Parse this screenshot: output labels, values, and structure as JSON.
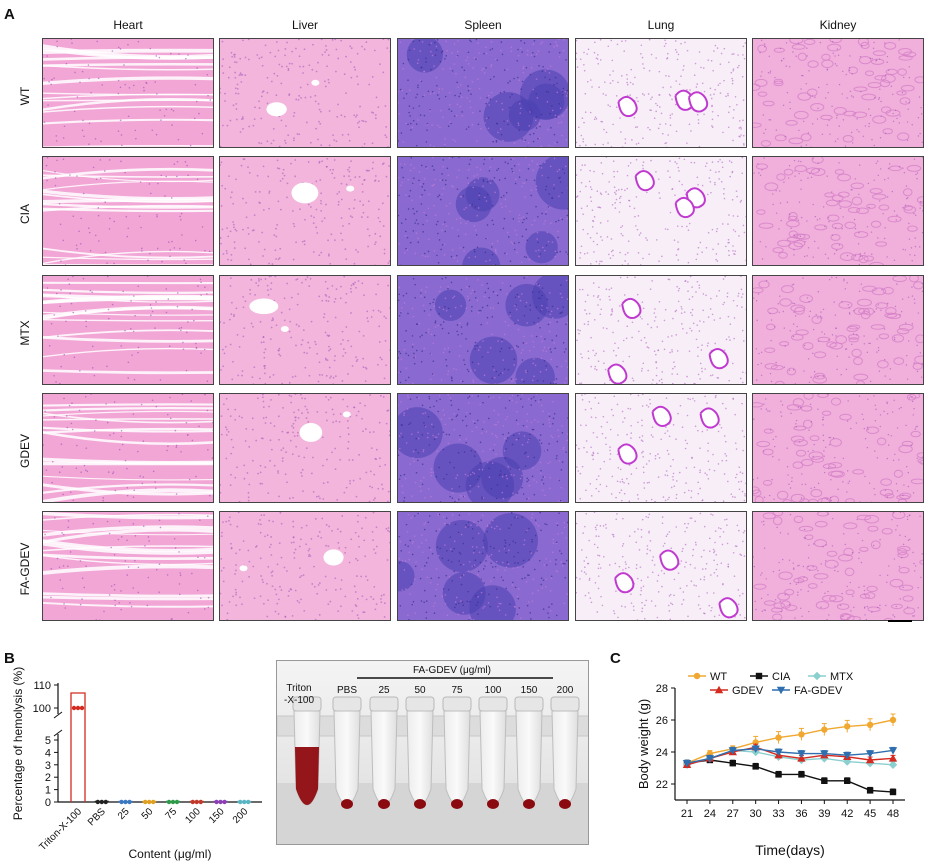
{
  "panel_a": {
    "letter": "A",
    "columns": [
      "Heart",
      "Liver",
      "Spleen",
      "Lung",
      "Kidney"
    ],
    "rows": [
      "WT",
      "CIA",
      "MTX",
      "GDEV",
      "FA-GDEV"
    ]
  },
  "panel_b": {
    "letter": "B",
    "chart_data": {
      "type": "scatter",
      "title": "",
      "ylabel": "Percentage of hemolysis (%)",
      "xlabel": "Content (μg/ml)",
      "categories": [
        "Triton-X-100",
        "PBS",
        "25",
        "50",
        "75",
        "100",
        "150",
        "200"
      ],
      "values": [
        100,
        0,
        0,
        0,
        0,
        0,
        0,
        0
      ],
      "y_ticks_lower": [
        "0",
        "1",
        "2",
        "3",
        "4",
        "5"
      ],
      "y_ticks_upper": [
        "100",
        "110"
      ],
      "axis_break": true,
      "colors": [
        "#d42a20",
        "#222222",
        "#3a78c2",
        "#e0a020",
        "#2f9a4a",
        "#c0392b",
        "#8a3fb5",
        "#5ab5c4"
      ]
    },
    "photo": {
      "group_label": "FA-GDEV (μg/ml)",
      "triton_label_1": "Triton",
      "triton_label_2": "-X-100",
      "labels": [
        "PBS",
        "25",
        "50",
        "75",
        "100",
        "150",
        "200"
      ]
    }
  },
  "panel_c": {
    "letter": "C",
    "chart_data": {
      "type": "line",
      "ylabel": "Body weight (g)",
      "xlabel": "Time(days)",
      "x": [
        21,
        24,
        27,
        30,
        33,
        36,
        39,
        42,
        45,
        48
      ],
      "ylim": [
        21,
        28
      ],
      "y_ticks": [
        22,
        24,
        26,
        28
      ],
      "series": [
        {
          "name": "WT",
          "color": "#f0a830",
          "marker": "circle",
          "values": [
            23.3,
            23.9,
            24.2,
            24.6,
            24.9,
            25.1,
            25.4,
            25.6,
            25.7,
            26.0
          ]
        },
        {
          "name": "CIA",
          "color": "#111111",
          "marker": "square",
          "values": [
            23.3,
            23.5,
            23.3,
            23.1,
            22.6,
            22.6,
            22.2,
            22.2,
            21.6,
            21.5
          ]
        },
        {
          "name": "MTX",
          "color": "#8ccfcf",
          "marker": "diamond",
          "values": [
            23.2,
            23.6,
            24.1,
            24.0,
            23.7,
            23.5,
            23.6,
            23.4,
            23.3,
            23.2
          ]
        },
        {
          "name": "GDEV",
          "color": "#d42a20",
          "marker": "triangle",
          "values": [
            23.2,
            23.6,
            24.0,
            24.3,
            23.8,
            23.6,
            23.8,
            23.7,
            23.5,
            23.6
          ]
        },
        {
          "name": "FA-GDEV",
          "color": "#2f6faf",
          "marker": "triangle-down",
          "values": [
            23.3,
            23.6,
            24.1,
            24.2,
            24.0,
            23.9,
            23.9,
            23.8,
            23.9,
            24.1
          ]
        }
      ]
    }
  }
}
